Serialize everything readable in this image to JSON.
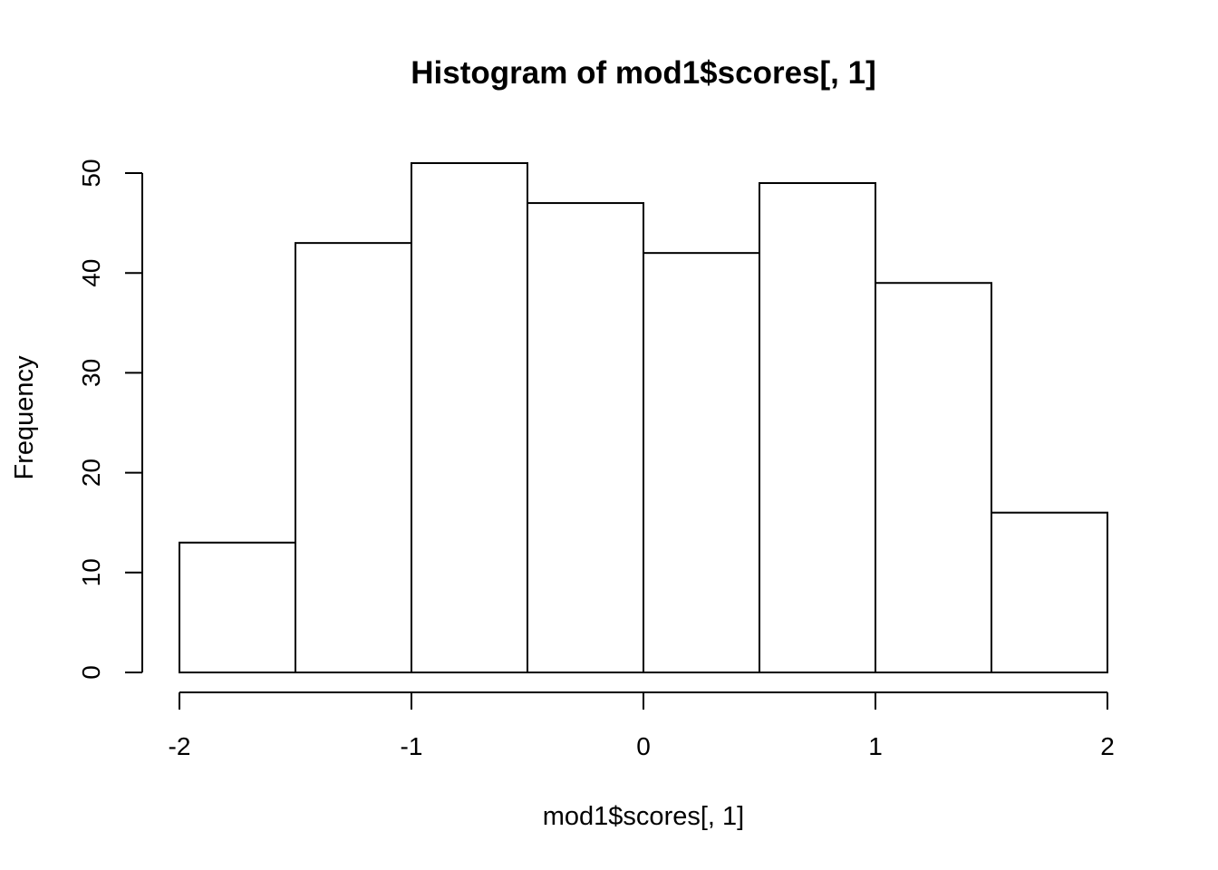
{
  "chart_data": {
    "type": "bar",
    "title": "Histogram of mod1$scores[, 1]",
    "xlabel": "mod1$scores[, 1]",
    "ylabel": "Frequency",
    "bins": [
      {
        "x0": -2.0,
        "x1": -1.5,
        "count": 13
      },
      {
        "x0": -1.5,
        "x1": -1.0,
        "count": 43
      },
      {
        "x0": -1.0,
        "x1": -0.5,
        "count": 51
      },
      {
        "x0": -0.5,
        "x1": 0.0,
        "count": 47
      },
      {
        "x0": 0.0,
        "x1": 0.5,
        "count": 42
      },
      {
        "x0": 0.5,
        "x1": 1.0,
        "count": 49
      },
      {
        "x0": 1.0,
        "x1": 1.5,
        "count": 39
      },
      {
        "x0": 1.5,
        "x1": 2.0,
        "count": 16
      }
    ],
    "xticks": [
      -2,
      -1,
      0,
      1,
      2
    ],
    "yticks": [
      0,
      10,
      20,
      30,
      40,
      50
    ],
    "xlim": [
      -2,
      2
    ],
    "ylim": [
      0,
      50
    ],
    "grid": false,
    "colors": {
      "bar_fill": "#ffffff",
      "bar_stroke": "#000000"
    }
  }
}
